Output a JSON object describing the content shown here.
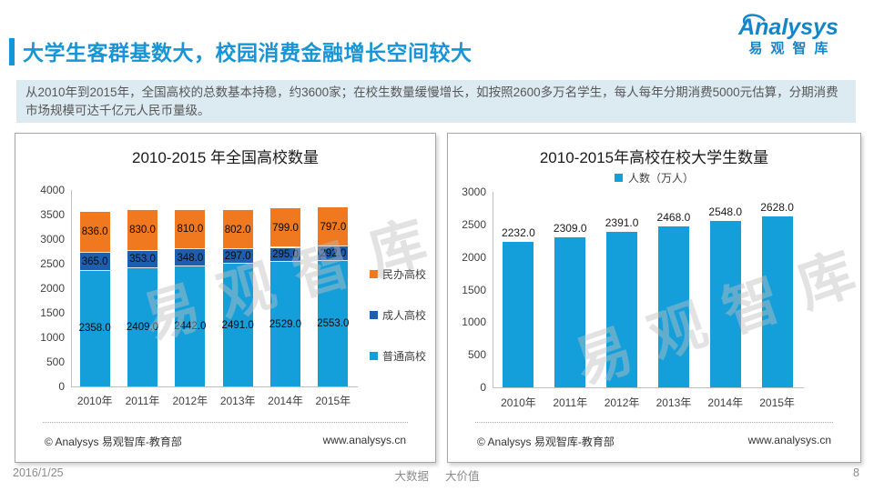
{
  "header": {
    "title": "大学生客群基数大，校园消费金融增长空间较大",
    "summary": "从2010年到2015年，全国高校的总数基本持稳，约3600家；在校生数量缓慢增长，如按照2600多万名学生，每人每年分期消费5000元估算，分期消费市场规模可达千亿元人民币量级。",
    "logo": {
      "brand": "Analysys",
      "brand_cn": "易观智库"
    }
  },
  "watermark": "易观智库",
  "chart_data": [
    {
      "type": "bar",
      "stacked": true,
      "title": "2010-2015 年全国高校数量",
      "categories": [
        "2010年",
        "2011年",
        "2012年",
        "2013年",
        "2014年",
        "2015年"
      ],
      "series": [
        {
          "name": "普通高校",
          "color": "#149FDB",
          "values": [
            2358,
            2409,
            2442,
            2491,
            2529,
            2553
          ]
        },
        {
          "name": "成人高校",
          "color": "#1E5EAE",
          "values": [
            365,
            353,
            348,
            297,
            295,
            292
          ]
        },
        {
          "name": "民办高校",
          "color": "#F0781E",
          "values": [
            836,
            830,
            810,
            802,
            799,
            797
          ]
        }
      ],
      "ylim": [
        0,
        4000
      ],
      "ytick_step": 500,
      "value_labels": "inside",
      "value_label_decimals": 1,
      "legend_position": "right",
      "grid": false
    },
    {
      "type": "bar",
      "stacked": false,
      "title": "2010-2015年高校在校大学生数量",
      "categories": [
        "2010年",
        "2011年",
        "2012年",
        "2013年",
        "2014年",
        "2015年"
      ],
      "series": [
        {
          "name": "人数（万人）",
          "color": "#149FDB",
          "values": [
            2232,
            2309,
            2391,
            2468,
            2548,
            2628
          ]
        }
      ],
      "ylim": [
        0,
        3000
      ],
      "ytick_step": 500,
      "value_labels": "above",
      "value_label_decimals": 1,
      "legend_position": "top",
      "grid": false
    }
  ],
  "panel_footer": {
    "copyright": "© Analysys 易观智库-教育部",
    "website": "www.analysys.cn"
  },
  "footer": {
    "date": "2016/1/25",
    "slogan_left": "大数据",
    "slogan_right": "大价值",
    "page": "8"
  },
  "colors": {
    "accent_blue": "#1795D4",
    "logo_blue": "#1385C8",
    "banner_bg": "#DCEAF2",
    "banner_text": "#575757",
    "bar_blue": "#149FDB",
    "bar_dark_blue": "#1E5EAE",
    "bar_orange": "#F0781E",
    "axis_line": "#BFBFBF",
    "panel_border": "#A6A6A6",
    "footer_gray": "#8C8C8C"
  }
}
